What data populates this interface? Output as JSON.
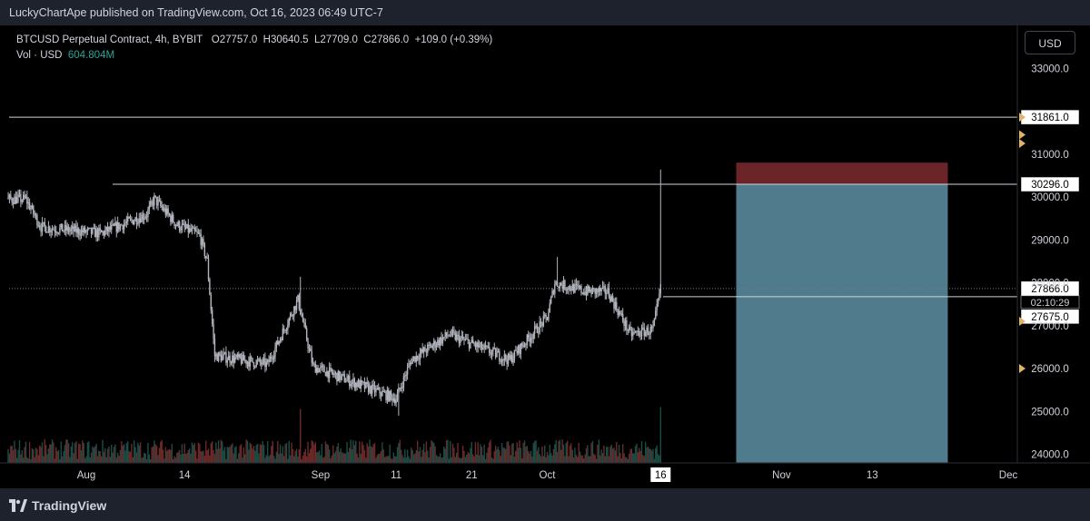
{
  "publisher_line": "LuckyChartApe published on TradingView.com, Oct 16, 2023 06:49 UTC-7",
  "brand": "TradingView",
  "currency_button": "USD",
  "legend": {
    "symbol": "BTCUSD Perpetual Contract, 4h, BYBIT",
    "open": "O27757.0",
    "high": "H30640.5",
    "low": "L27709.0",
    "close": "C27866.0",
    "change": "+109.0 (+0.39%)",
    "vol_label": "Vol · USD",
    "vol_value": "604.804M"
  },
  "colors": {
    "background": "#000000",
    "chrome": "#1e222d",
    "candle": "#b2b5be",
    "volume_up": "#1b4d46",
    "volume_down": "#6b2a2a",
    "stop_zone": "#6b2428",
    "target_zone": "#4f7b8c",
    "marker": "#e0b36a",
    "axis_text": "#d1d4dc"
  },
  "chart_data": {
    "type": "candlestick",
    "timeframe": "4h",
    "x_tick_labels": [
      "Aug",
      "14",
      "Sep",
      "11",
      "21",
      "Oct",
      "16",
      "Nov",
      "13",
      "Dec"
    ],
    "y_tick_labels": [
      "33000.0",
      "31000.0",
      "30000.0",
      "29000.0",
      "28000.0",
      "27000.0",
      "26000.0",
      "25000.0",
      "24000.0"
    ],
    "ylim": [
      23800,
      34000
    ],
    "price_path": [
      {
        "date": "2023-07-24",
        "price": 29950
      },
      {
        "date": "2023-07-26",
        "price": 29300
      },
      {
        "date": "2023-07-31",
        "price": 29200
      },
      {
        "date": "2023-08-03",
        "price": 29150
      },
      {
        "date": "2023-08-09",
        "price": 29600
      },
      {
        "date": "2023-08-10",
        "price": 29950
      },
      {
        "date": "2023-08-13",
        "price": 29350
      },
      {
        "date": "2023-08-16",
        "price": 29100
      },
      {
        "date": "2023-08-17",
        "price": 28500
      },
      {
        "date": "2023-08-18",
        "price": 26300
      },
      {
        "date": "2023-08-25",
        "price": 26100
      },
      {
        "date": "2023-08-29",
        "price": 27600
      },
      {
        "date": "2023-08-31",
        "price": 26050
      },
      {
        "date": "2023-09-05",
        "price": 25700
      },
      {
        "date": "2023-09-11",
        "price": 25300
      },
      {
        "date": "2023-09-13",
        "price": 26200
      },
      {
        "date": "2023-09-18",
        "price": 26800
      },
      {
        "date": "2023-09-22",
        "price": 26500
      },
      {
        "date": "2023-09-26",
        "price": 26200
      },
      {
        "date": "2023-10-01",
        "price": 27200
      },
      {
        "date": "2023-10-02",
        "price": 28000
      },
      {
        "date": "2023-10-06",
        "price": 27800
      },
      {
        "date": "2023-10-09",
        "price": 27800
      },
      {
        "date": "2023-10-12",
        "price": 26800
      },
      {
        "date": "2023-10-15",
        "price": 26900
      },
      {
        "date": "2023-10-16",
        "price": 27866
      }
    ],
    "spikes": [
      {
        "date": "2023-08-29",
        "high": 28140
      },
      {
        "date": "2023-09-11",
        "low": 24900
      },
      {
        "date": "2023-10-02",
        "high": 28600
      },
      {
        "date": "2023-10-16",
        "high": 30640.5
      }
    ],
    "horizontal_lines": [
      {
        "price": 31861.0,
        "label": "31861.0"
      },
      {
        "price": 30296.0,
        "label": "30296.0"
      }
    ],
    "last_price": {
      "price": 27866.0,
      "label": "27866.0",
      "countdown": "02:10:29"
    },
    "entry_level": {
      "price": 27675.0,
      "label": "27675.0"
    },
    "position_tool": {
      "start": "2023-10-26",
      "end": "2023-11-23",
      "stop": 30800,
      "entry": 30296,
      "target": 23800
    }
  }
}
